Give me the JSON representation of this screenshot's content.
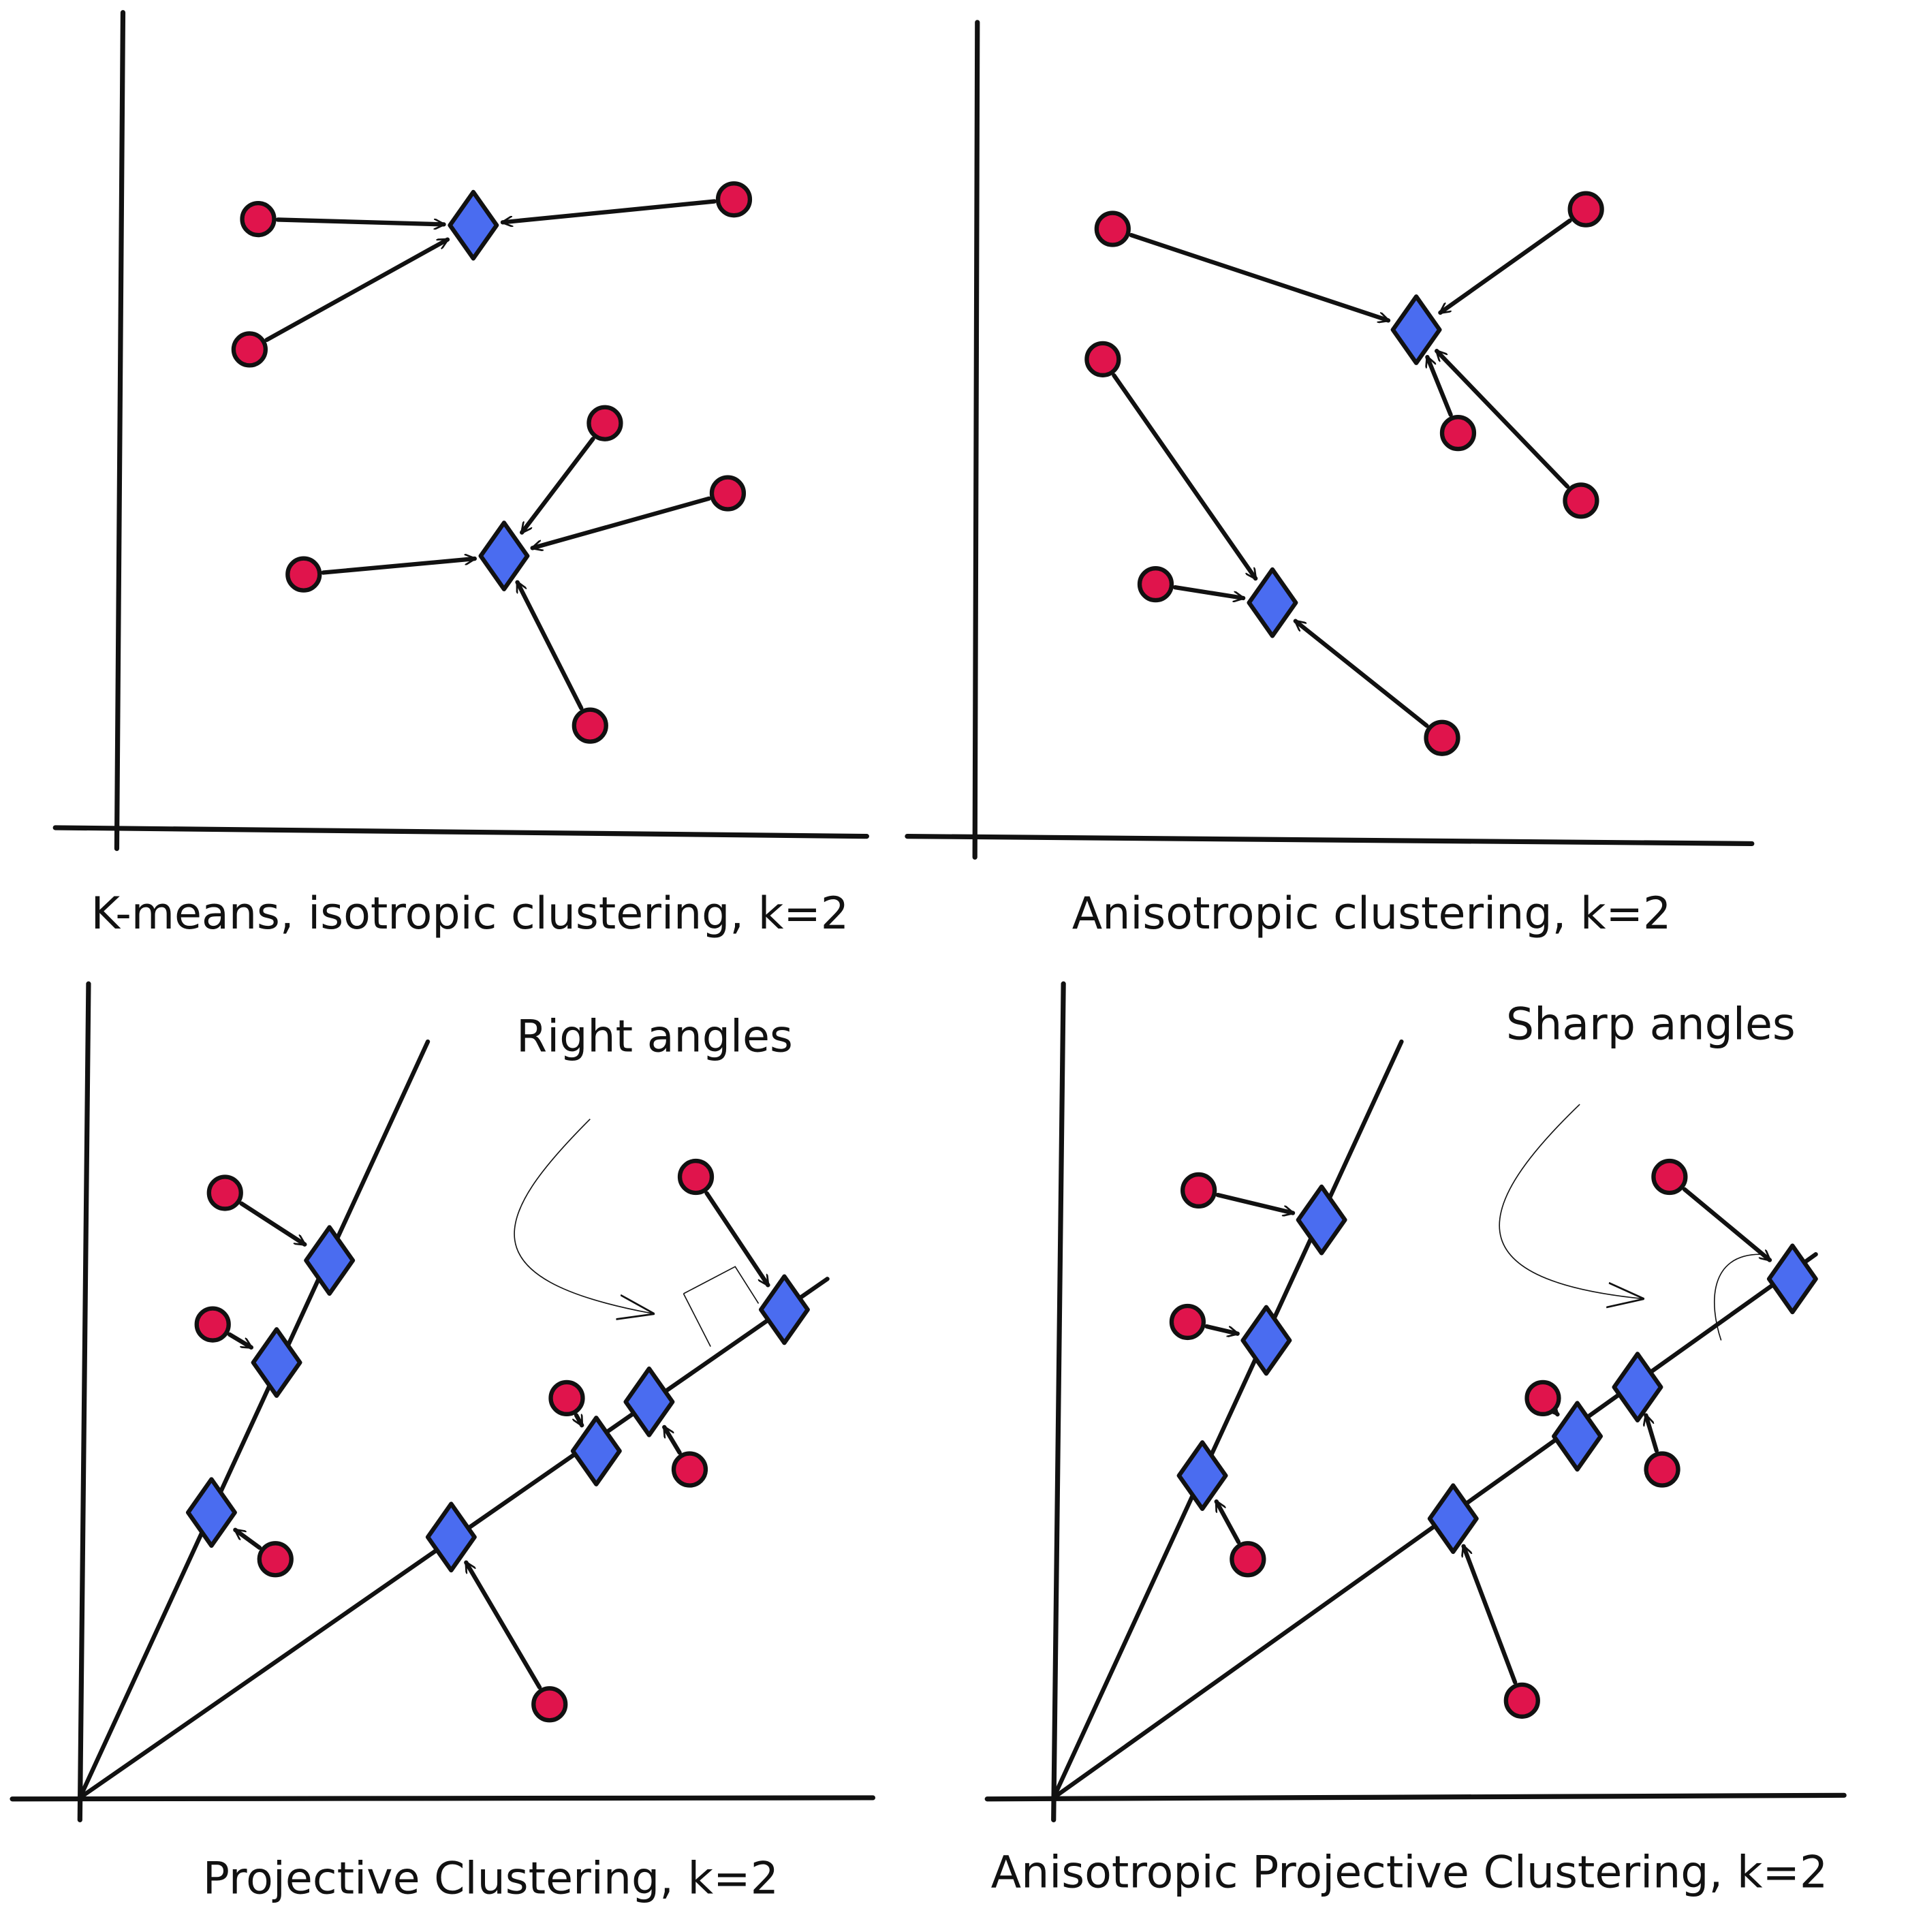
{
  "panels": [
    {
      "caption": "K-means, isotropic clustering, k=2"
    },
    {
      "caption": "Anisotropic clustering, k=2"
    },
    {
      "caption": "Projective Clustering, k=2",
      "annotation": "Right angles"
    },
    {
      "caption": "Anisotropic Projective Clustering, k=2",
      "annotation": "Sharp angles"
    }
  ]
}
